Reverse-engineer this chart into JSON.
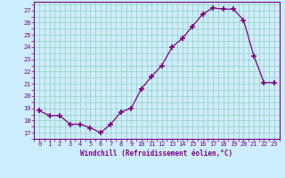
{
  "x": [
    0,
    1,
    2,
    3,
    4,
    5,
    6,
    7,
    8,
    9,
    10,
    11,
    12,
    13,
    14,
    15,
    16,
    17,
    18,
    19,
    20,
    21,
    22,
    23
  ],
  "y": [
    18.8,
    18.4,
    18.4,
    17.7,
    17.7,
    17.4,
    17.0,
    17.7,
    18.7,
    19.0,
    20.6,
    21.6,
    22.5,
    24.0,
    24.7,
    25.7,
    26.7,
    27.2,
    27.1,
    27.1,
    26.2,
    23.3,
    21.1,
    21.1
  ],
  "line_color": "#800080",
  "marker": "+",
  "markersize": 4,
  "markeredgewidth": 1.2,
  "linewidth": 0.9,
  "bg_color": "#cceeff",
  "grid_color": "#99ccbb",
  "xlabel": "Windchill (Refroidissement éolien,°C)",
  "xlabel_color": "#800080",
  "tick_color": "#800080",
  "label_fontsize": 5,
  "xlabel_fontsize": 5.5,
  "ylim": [
    16.5,
    27.7
  ],
  "xlim": [
    -0.5,
    23.5
  ],
  "yticks": [
    17,
    18,
    19,
    20,
    21,
    22,
    23,
    24,
    25,
    26,
    27
  ],
  "xticks": [
    0,
    1,
    2,
    3,
    4,
    5,
    6,
    7,
    8,
    9,
    10,
    11,
    12,
    13,
    14,
    15,
    16,
    17,
    18,
    19,
    20,
    21,
    22,
    23
  ]
}
